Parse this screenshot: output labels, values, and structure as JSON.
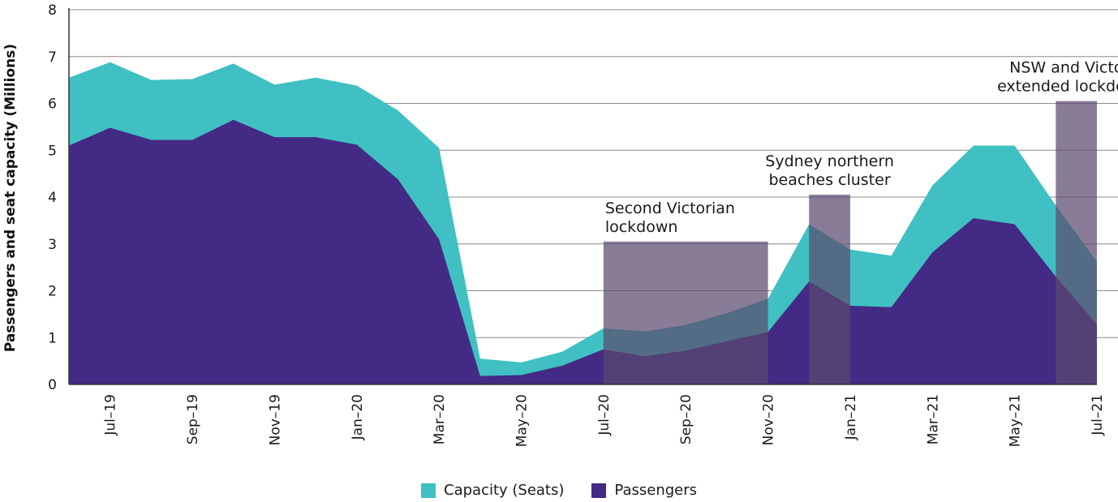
{
  "chart_data": {
    "type": "area",
    "ylabel": "Passengers and seat capacity (Millions)",
    "ylim": [
      0,
      8
    ],
    "yticks": [
      "0",
      "1",
      "2",
      "3",
      "4",
      "5",
      "6",
      "7",
      "8"
    ],
    "x": [
      "Jun-19",
      "Jul-19",
      "Aug-19",
      "Sep-19",
      "Oct-19",
      "Nov-19",
      "Dec-19",
      "Jan-20",
      "Feb-20",
      "Mar-20",
      "Apr-20",
      "May-20",
      "Jun-20",
      "Jul-20",
      "Aug-20",
      "Sep-20",
      "Oct-20",
      "Nov-20",
      "Dec-20",
      "Jan-21",
      "Feb-21",
      "Mar-21",
      "Apr-21",
      "May-21",
      "Jun-21",
      "Jul-21"
    ],
    "xtick_labels": [
      {
        "x": "Jul-19",
        "label": "Jul–19"
      },
      {
        "x": "Sep-19",
        "label": "Sep–19"
      },
      {
        "x": "Nov-19",
        "label": "Nov–19"
      },
      {
        "x": "Jan-20",
        "label": "Jan–20"
      },
      {
        "x": "Mar-20",
        "label": "Mar–20"
      },
      {
        "x": "May-20",
        "label": "May–20"
      },
      {
        "x": "Jul-20",
        "label": "Jul–20"
      },
      {
        "x": "Sep-20",
        "label": "Sep–20"
      },
      {
        "x": "Nov-20",
        "label": "Nov–20"
      },
      {
        "x": "Jan-21",
        "label": "Jan–21"
      },
      {
        "x": "Mar-21",
        "label": "Mar–21"
      },
      {
        "x": "May-21",
        "label": "May–21"
      },
      {
        "x": "Jul-21",
        "label": "Jul–21"
      }
    ],
    "series": [
      {
        "name": "Capacity (Seats)",
        "color": "#40c0c2",
        "values": [
          6.55,
          6.88,
          6.5,
          6.52,
          6.85,
          6.4,
          6.55,
          6.38,
          5.85,
          5.05,
          0.55,
          0.47,
          0.7,
          1.2,
          1.13,
          1.27,
          1.52,
          1.83,
          3.42,
          2.88,
          2.75,
          4.25,
          5.1,
          5.1,
          3.82,
          2.62
        ]
      },
      {
        "name": "Passengers",
        "color": "#432a85",
        "values": [
          5.1,
          5.48,
          5.22,
          5.22,
          5.65,
          5.28,
          5.28,
          5.12,
          4.38,
          3.1,
          0.18,
          0.2,
          0.4,
          0.75,
          0.6,
          0.72,
          0.92,
          1.12,
          2.2,
          1.68,
          1.65,
          2.82,
          3.55,
          3.42,
          2.3,
          1.28
        ]
      }
    ],
    "annotations": [
      {
        "lines": [
          "Second Victorian",
          "lockdown"
        ],
        "from": "Jul-20",
        "to": "Nov-20",
        "height": 3.05,
        "color": "#5a4a6e"
      },
      {
        "lines": [
          "Sydney northern",
          "beaches cluster"
        ],
        "from": "Dec-20",
        "to": "Jan-21",
        "height": 4.05,
        "color": "#5a4a6e"
      },
      {
        "lines": [
          "NSW and Victoria",
          "extended lockdowns"
        ],
        "from": "Jun-21",
        "to": "Jul-21",
        "height": 6.05,
        "color": "#5a4a6e"
      }
    ],
    "grid": true,
    "legend_position": "bottom-center"
  }
}
